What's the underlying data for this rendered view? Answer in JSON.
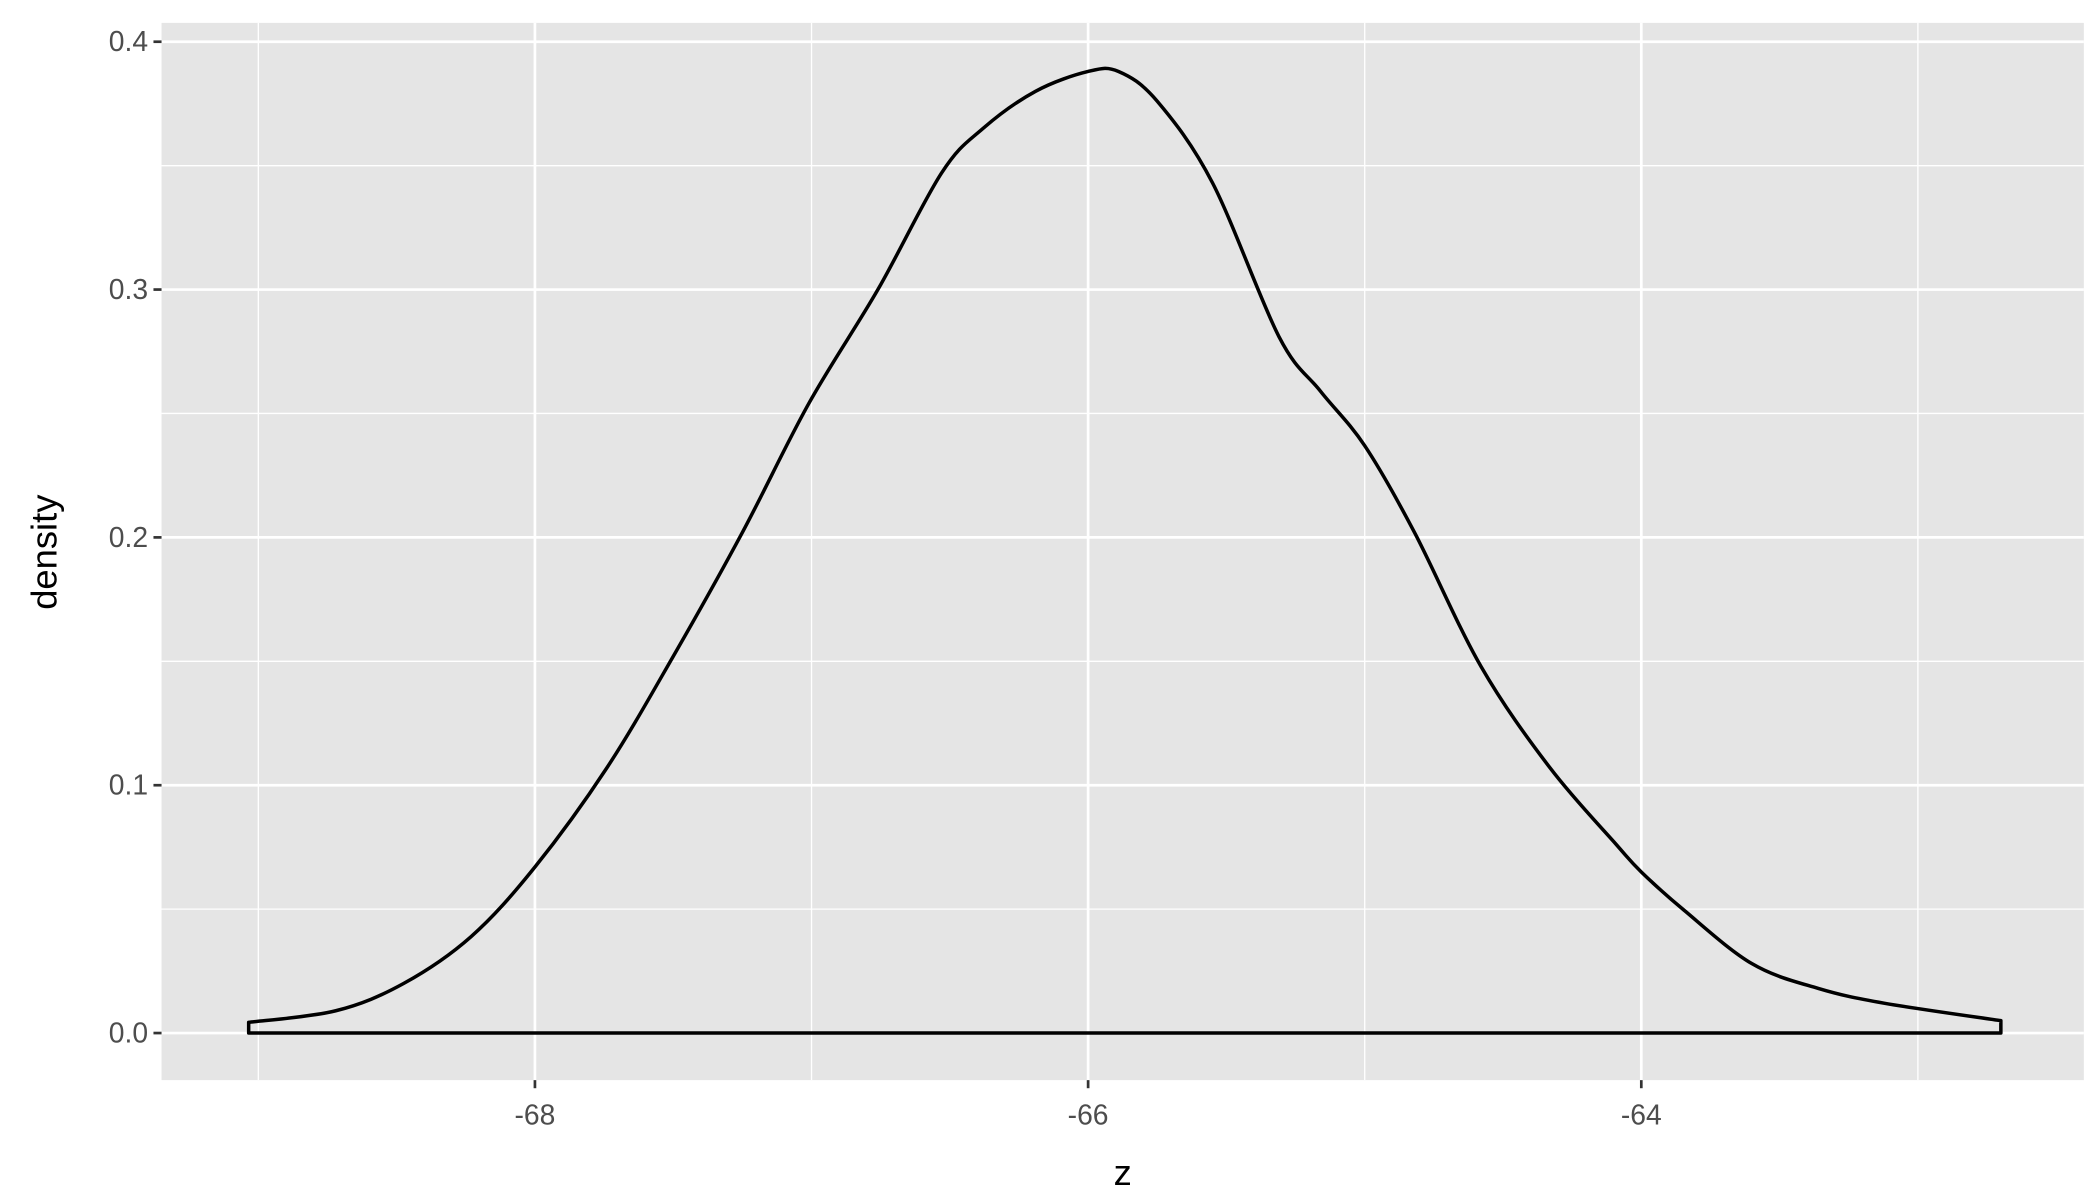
{
  "chart_data": {
    "type": "area",
    "title": "",
    "xlabel": "z",
    "ylabel": "density",
    "xlim": [
      -69.35,
      -62.4
    ],
    "ylim": [
      -0.019,
      0.4076
    ],
    "x_ticks": [
      -68,
      -66,
      -64
    ],
    "x_tick_labels": [
      "-68",
      "-66",
      "-64"
    ],
    "y_ticks": [
      0.0,
      0.1,
      0.2,
      0.3,
      0.4
    ],
    "y_tick_labels": [
      "0.0",
      "0.1",
      "0.2",
      "0.3",
      "0.4"
    ],
    "grid": true,
    "colors": {
      "panel": "#e5e5e5",
      "grid": "#ffffff",
      "line": "#000000",
      "fill": "none"
    },
    "series": [
      {
        "x": [
          -69.035,
          -68.72,
          -68.475,
          -68.23,
          -68.0,
          -67.74,
          -67.5,
          -67.25,
          -67.01,
          -66.76,
          -66.53,
          -66.38,
          -66.19,
          -66.0,
          -65.89,
          -65.75,
          -65.55,
          -65.31,
          -65.16,
          -65.0,
          -64.82,
          -64.58,
          -64.33,
          -64.09,
          -64.0,
          -63.85,
          -63.6,
          -63.36,
          -63.12,
          -62.7
        ],
        "y": [
          0.0043,
          0.009,
          0.02,
          0.039,
          0.067,
          0.107,
          0.152,
          0.202,
          0.254,
          0.3,
          0.347,
          0.365,
          0.38,
          0.388,
          0.388,
          0.376,
          0.343,
          0.281,
          0.259,
          0.237,
          0.202,
          0.148,
          0.107,
          0.076,
          0.065,
          0.05,
          0.028,
          0.018,
          0.012,
          0.005
        ]
      }
    ]
  }
}
